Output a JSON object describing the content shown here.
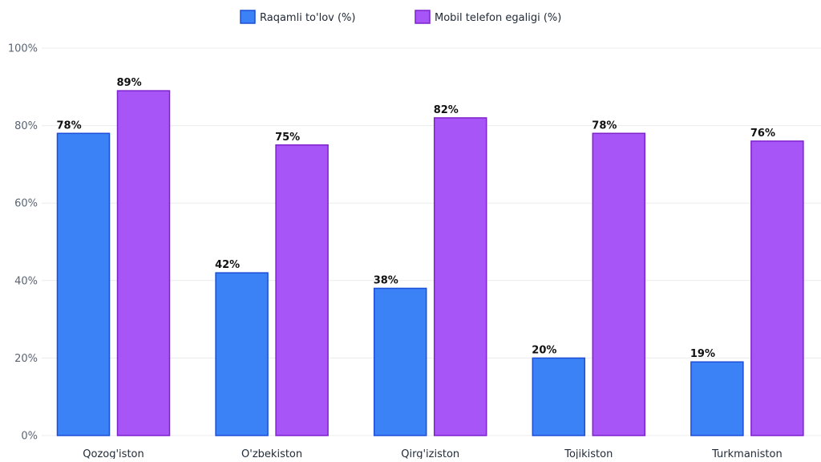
{
  "chart_data": {
    "type": "bar",
    "categories": [
      "Qozog'iston",
      "O'zbekiston",
      "Qirg'iziston",
      "Tojikiston",
      "Turkmaniston"
    ],
    "series": [
      {
        "name": "Raqamli to'lov (%)",
        "values": [
          78,
          42,
          38,
          20,
          19
        ],
        "color": "#3b82f6",
        "border": "#1d4ed8"
      },
      {
        "name": "Mobil telefon egaligi (%)",
        "values": [
          89,
          75,
          82,
          78,
          76
        ],
        "color": "#a855f7",
        "border": "#7e22ce"
      }
    ],
    "title": "",
    "xlabel": "",
    "ylabel": "",
    "ylim": [
      0,
      100
    ],
    "yticks": [
      0,
      20,
      40,
      60,
      80,
      100
    ],
    "value_suffix": "%",
    "grid": true,
    "legend_position": "top-center"
  }
}
